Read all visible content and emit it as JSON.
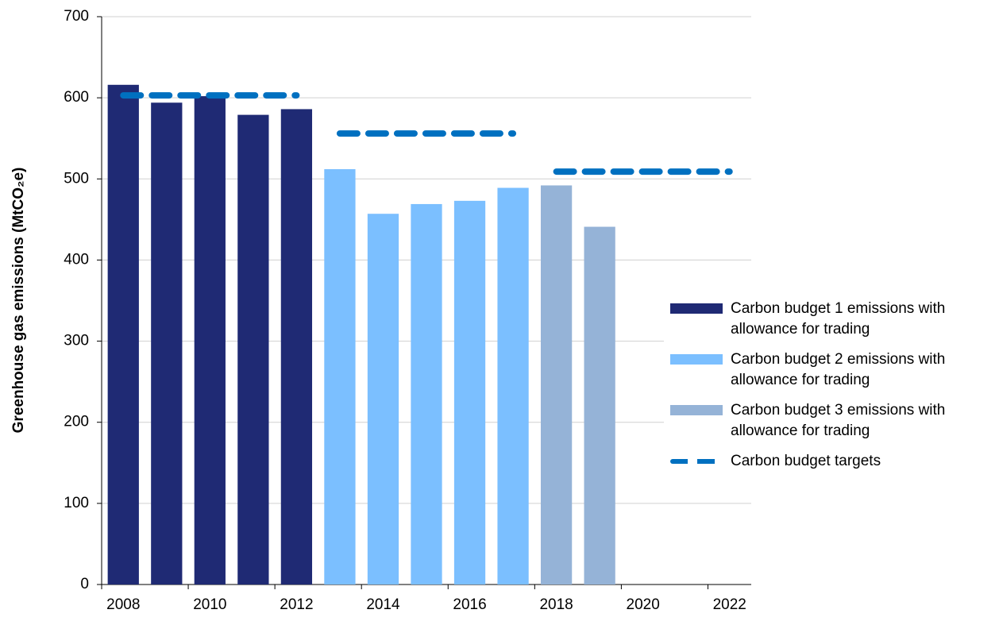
{
  "chart_data": {
    "type": "bar",
    "y_label": "Greenhouse gas emissions (MtCO₂e)",
    "categories": [
      "2008",
      null,
      "2010",
      null,
      "2012",
      null,
      "2014",
      null,
      "2016",
      null,
      "2018",
      null,
      "2020",
      null,
      "2022"
    ],
    "series": [
      {
        "name": "Carbon budget 1 emissions with allowance for trading",
        "color": "#1f2a74",
        "values": [
          616,
          594,
          602,
          579,
          586,
          null,
          null,
          null,
          null,
          null,
          null,
          null,
          null,
          null,
          null
        ]
      },
      {
        "name": "Carbon budget 2 emissions with allowance for trading",
        "color": "#7bbfff",
        "values": [
          null,
          null,
          null,
          null,
          null,
          512,
          457,
          469,
          473,
          489,
          null,
          null,
          null,
          null,
          null
        ]
      },
      {
        "name": "Carbon budget 3 emissions with allowance for trading",
        "color": "#95b3d7",
        "values": [
          null,
          null,
          null,
          null,
          null,
          null,
          null,
          null,
          null,
          null,
          492,
          441,
          null,
          null,
          null
        ]
      },
      {
        "name": "Carbon budget targets",
        "color": "#0070c0",
        "line_style": "dashed",
        "values": [
          603,
          603,
          603,
          603,
          603,
          556,
          556,
          556,
          556,
          556,
          509,
          509,
          509,
          509,
          509
        ]
      }
    ],
    "ylim": [
      0,
      700
    ],
    "yticks": [
      0,
      100,
      200,
      300,
      400,
      500,
      600,
      700
    ],
    "grid": true,
    "legend": "right"
  }
}
